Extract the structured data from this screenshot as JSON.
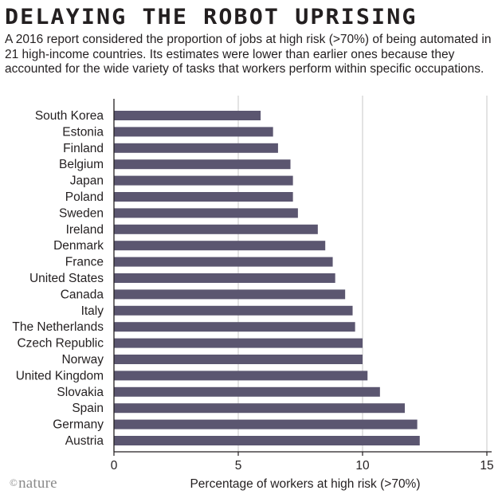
{
  "header": {
    "title": "DELAYING THE ROBOT UPRISING",
    "subtitle": "A 2016 report considered the proportion of jobs at high risk (>70%) of being automated in 21 high-income countries. Its estimates were lower than earlier ones because they accounted for the wide variety of tasks that workers perform within specific occupations."
  },
  "footer": {
    "brand": "nature",
    "copyright": "©"
  },
  "colors": {
    "bar": "#5b5670",
    "grid": "#c7c7c7",
    "axis": "#231f20",
    "text": "#231f20"
  },
  "chart_data": {
    "type": "bar",
    "orientation": "horizontal",
    "categories": [
      "South Korea",
      "Estonia",
      "Finland",
      "Belgium",
      "Japan",
      "Poland",
      "Sweden",
      "Ireland",
      "Denmark",
      "France",
      "United States",
      "Canada",
      "Italy",
      "The Netherlands",
      "Czech Republic",
      "Norway",
      "United Kingdom",
      "Slovakia",
      "Spain",
      "Germany",
      "Austria"
    ],
    "values": [
      5.9,
      6.4,
      6.6,
      7.1,
      7.2,
      7.2,
      7.4,
      8.2,
      8.5,
      8.8,
      8.9,
      9.3,
      9.6,
      9.7,
      10.0,
      10.0,
      10.2,
      10.7,
      11.7,
      12.2,
      12.3
    ],
    "xlabel": "Percentage of workers at high risk (>70%)",
    "ylabel": "",
    "xlim": [
      0,
      15
    ],
    "xticks": [
      0,
      5,
      10,
      15
    ],
    "grid": true
  }
}
